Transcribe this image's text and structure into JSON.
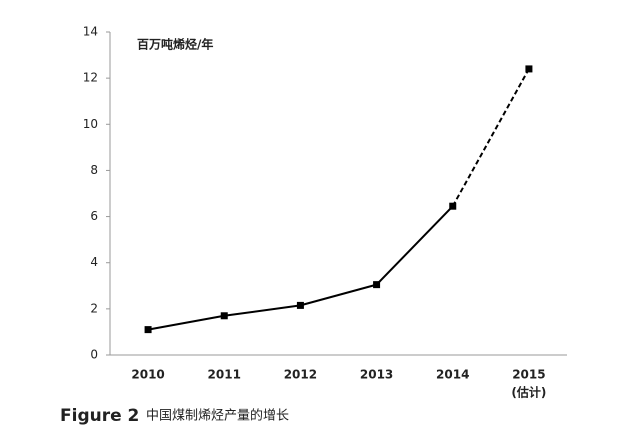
{
  "chart_data": {
    "type": "line",
    "y_label": "百万吨烯烃/年",
    "figure_label": "Figure 2",
    "caption": "中国煤制烯烃产量的增长",
    "categories": [
      "2010",
      "2011",
      "2012",
      "2013",
      "2014",
      "2015"
    ],
    "category_sublabels": [
      null,
      null,
      null,
      null,
      null,
      "(估计)"
    ],
    "values": [
      1.1,
      1.7,
      2.15,
      3.05,
      6.45,
      12.4
    ],
    "segment_styles": [
      "solid",
      "solid",
      "solid",
      "solid",
      "dashed"
    ],
    "color": "#000000",
    "ylim": [
      0,
      14
    ],
    "yticks": [
      0,
      2,
      4,
      6,
      8,
      10,
      12,
      14
    ],
    "grid": false
  }
}
